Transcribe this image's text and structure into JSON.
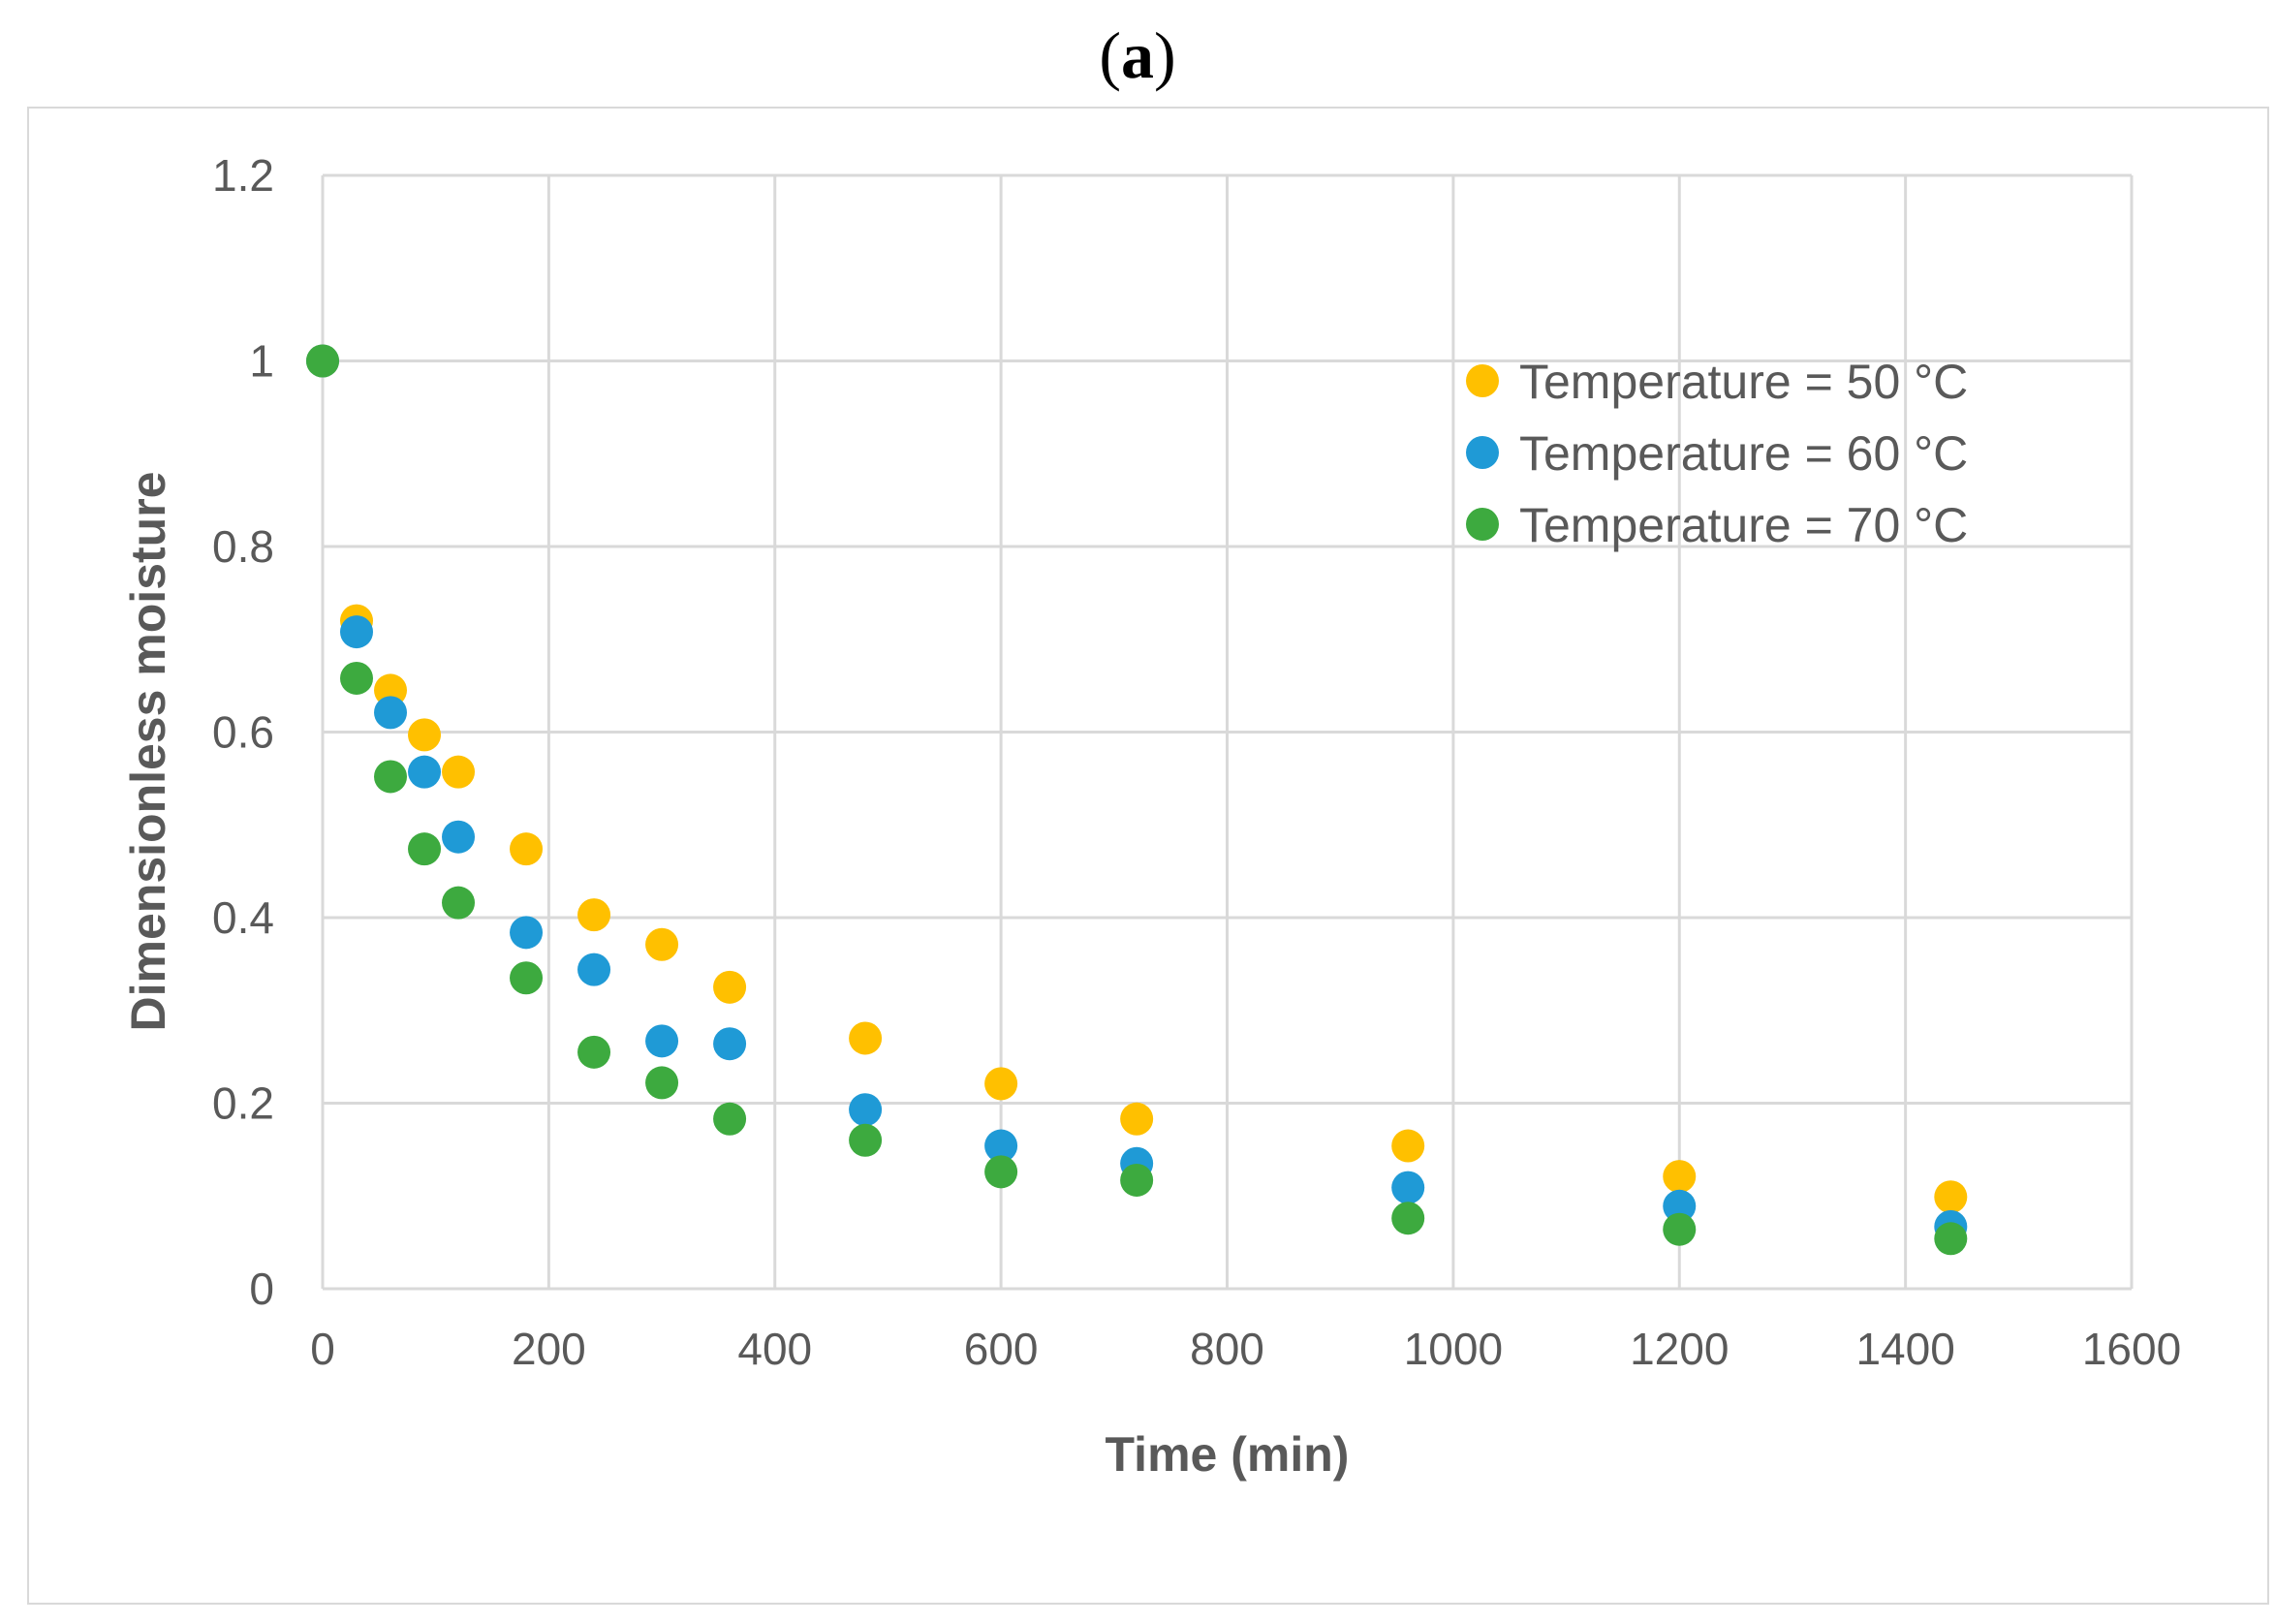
{
  "panel_label": {
    "open": "(",
    "letter": "a",
    "close": ")"
  },
  "chart_data": {
    "type": "scatter",
    "title": "",
    "xlabel": "Time (min)",
    "ylabel": "Dimensionless moisture",
    "xlim": [
      0,
      1600
    ],
    "ylim": [
      0,
      1.2
    ],
    "x_ticks": [
      0,
      200,
      400,
      600,
      800,
      1000,
      1200,
      1400,
      1600
    ],
    "y_ticks": [
      0,
      0.2,
      0.4,
      0.6,
      0.8,
      1,
      1.2
    ],
    "x_tick_labels": [
      "0",
      "200",
      "400",
      "600",
      "800",
      "1000",
      "1200",
      "1400",
      "1600"
    ],
    "y_tick_labels": [
      "0",
      "0.2",
      "0.4",
      "0.6",
      "0.8",
      "1",
      "1.2"
    ],
    "grid": true,
    "legend_position": "top-right",
    "x": [
      0,
      30,
      60,
      90,
      120,
      180,
      240,
      300,
      360,
      480,
      600,
      720,
      960,
      1200,
      1440
    ],
    "series": [
      {
        "name": "Temperature = 50 °C",
        "color": "#ffc000",
        "values": [
          1,
          0.72,
          0.645,
          0.597,
          0.557,
          0.474,
          0.403,
          0.371,
          0.325,
          0.27,
          0.221,
          0.183,
          0.154,
          0.121,
          0.099
        ]
      },
      {
        "name": "Temperature = 60 °C",
        "color": "#1f9ad6",
        "values": [
          1,
          0.708,
          0.621,
          0.557,
          0.487,
          0.384,
          0.344,
          0.267,
          0.264,
          0.193,
          0.154,
          0.135,
          0.109,
          0.089,
          0.067
        ]
      },
      {
        "name": "Temperature = 70 °C",
        "color": "#3daa3f",
        "values": [
          1,
          0.658,
          0.552,
          0.474,
          0.416,
          0.335,
          0.255,
          0.222,
          0.183,
          0.16,
          0.126,
          0.117,
          0.076,
          0.064,
          0.054
        ]
      }
    ]
  }
}
